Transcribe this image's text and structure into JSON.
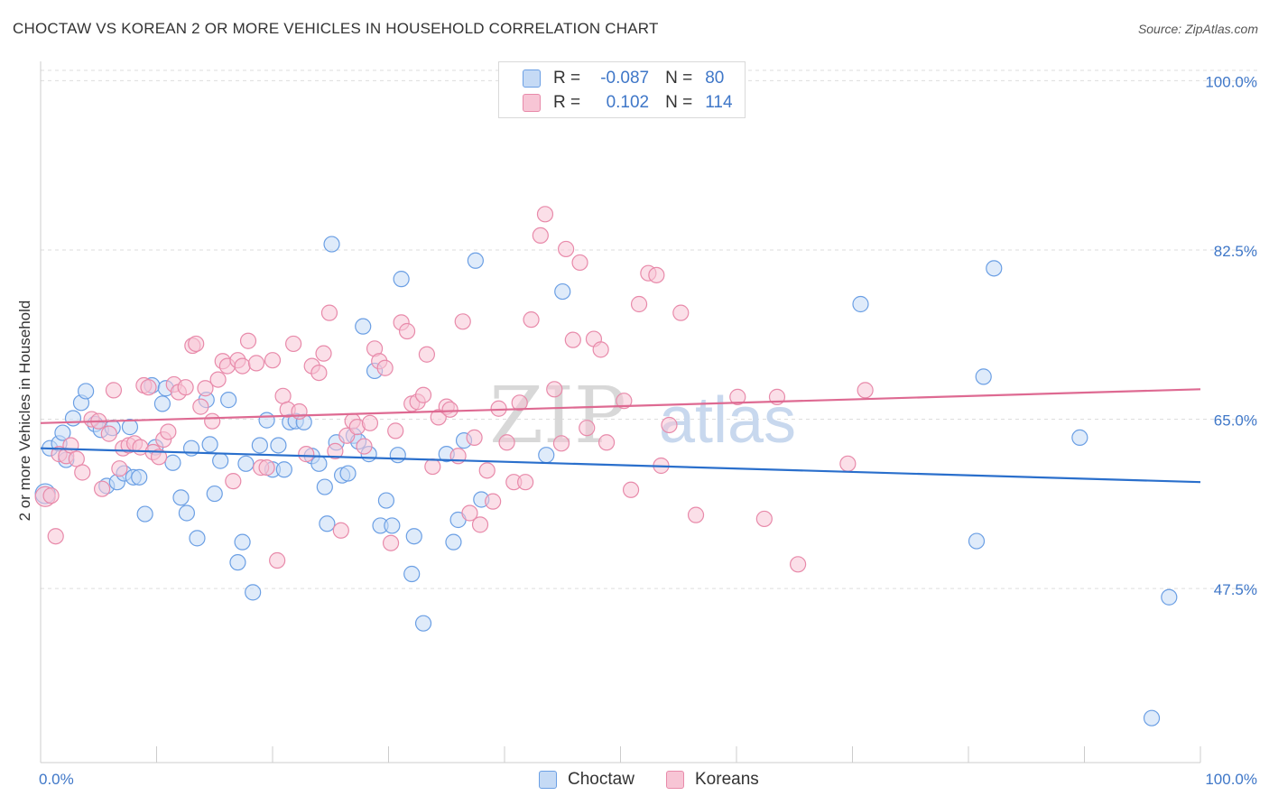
{
  "title": "CHOCTAW VS KOREAN 2 OR MORE VEHICLES IN HOUSEHOLD CORRELATION CHART",
  "source": "Source: ZipAtlas.com",
  "watermark": {
    "zip": "ZIP",
    "atlas": "atlas"
  },
  "legend": {
    "rows": [
      {
        "r_label": "R =",
        "r_value": "-0.087",
        "n_label": "N =",
        "n_value": "80"
      },
      {
        "r_label": "R =",
        "r_value": "0.102",
        "n_label": "N =",
        "n_value": "114"
      }
    ]
  },
  "bottom_legend": [
    "Choctaw",
    "Koreans"
  ],
  "chart_data": {
    "type": "scatter",
    "title": "CHOCTAW VS KOREAN 2 OR MORE VEHICLES IN HOUSEHOLD CORRELATION CHART",
    "xlabel": "",
    "ylabel": "2 or more Vehicles in Household",
    "xlim": [
      0,
      100
    ],
    "ylim": [
      29.5,
      102
    ],
    "x_tick_labels": [
      "0.0%",
      "100.0%"
    ],
    "y_ticks": [
      47.5,
      65.0,
      82.5,
      100.0
    ],
    "y_tick_labels": [
      "47.5%",
      "65.0%",
      "82.5%",
      "100.0%"
    ],
    "grid": true,
    "series": [
      {
        "name": "Choctaw",
        "color": "#6b9fe4",
        "fill": "#c5daf5",
        "trend_color": "#2a6fcc",
        "r": -0.087,
        "n": 80,
        "trend": [
          [
            0,
            62.0
          ],
          [
            100,
            58.5
          ]
        ],
        "points": [
          [
            0.4,
            57.3
          ],
          [
            0.8,
            62.0
          ],
          [
            1.6,
            62.5
          ],
          [
            1.9,
            63.6
          ],
          [
            2.2,
            60.8
          ],
          [
            2.8,
            65.1
          ],
          [
            3.5,
            66.7
          ],
          [
            3.9,
            67.9
          ],
          [
            4.7,
            64.5
          ],
          [
            5.2,
            63.9
          ],
          [
            5.7,
            58.1
          ],
          [
            6.2,
            64.1
          ],
          [
            6.6,
            58.5
          ],
          [
            7.2,
            59.4
          ],
          [
            7.7,
            64.2
          ],
          [
            8.0,
            59.0
          ],
          [
            8.5,
            59.0
          ],
          [
            9.0,
            55.2
          ],
          [
            9.6,
            68.5
          ],
          [
            9.9,
            62.1
          ],
          [
            10.5,
            66.6
          ],
          [
            10.8,
            68.2
          ],
          [
            11.4,
            60.5
          ],
          [
            12.1,
            56.9
          ],
          [
            12.6,
            55.3
          ],
          [
            13.0,
            62.0
          ],
          [
            13.5,
            52.7
          ],
          [
            14.3,
            67.0
          ],
          [
            14.6,
            62.4
          ],
          [
            15.0,
            57.3
          ],
          [
            15.5,
            60.7
          ],
          [
            16.2,
            67.0
          ],
          [
            17.0,
            50.2
          ],
          [
            17.4,
            52.3
          ],
          [
            17.7,
            60.4
          ],
          [
            18.3,
            47.1
          ],
          [
            18.9,
            62.3
          ],
          [
            19.5,
            64.9
          ],
          [
            20.0,
            59.8
          ],
          [
            20.5,
            62.3
          ],
          [
            21.0,
            59.8
          ],
          [
            21.5,
            64.7
          ],
          [
            22.0,
            64.8
          ],
          [
            22.7,
            64.7
          ],
          [
            23.4,
            61.2
          ],
          [
            24.0,
            60.4
          ],
          [
            24.5,
            58.0
          ],
          [
            24.7,
            54.2
          ],
          [
            25.1,
            83.1
          ],
          [
            25.5,
            62.6
          ],
          [
            26.0,
            59.2
          ],
          [
            26.5,
            59.4
          ],
          [
            27.0,
            63.3
          ],
          [
            27.4,
            62.7
          ],
          [
            27.8,
            74.6
          ],
          [
            28.3,
            61.4
          ],
          [
            28.8,
            70.0
          ],
          [
            29.3,
            54.0
          ],
          [
            29.8,
            56.6
          ],
          [
            30.3,
            54.0
          ],
          [
            30.8,
            61.3
          ],
          [
            31.1,
            79.5
          ],
          [
            32.0,
            49.0
          ],
          [
            32.2,
            52.9
          ],
          [
            33.0,
            43.9
          ],
          [
            35.0,
            61.4
          ],
          [
            35.6,
            52.3
          ],
          [
            36.0,
            54.6
          ],
          [
            36.5,
            62.8
          ],
          [
            37.5,
            81.4
          ],
          [
            38.0,
            56.7
          ],
          [
            43.6,
            61.3
          ],
          [
            45.0,
            78.2
          ],
          [
            70.7,
            76.9
          ],
          [
            80.7,
            52.4
          ],
          [
            81.3,
            69.4
          ],
          [
            82.2,
            80.6
          ],
          [
            89.6,
            63.1
          ],
          [
            97.3,
            46.6
          ],
          [
            95.8,
            34.1
          ]
        ]
      },
      {
        "name": "Koreans",
        "color": "#e88aaa",
        "fill": "#f7c5d5",
        "trend_color": "#de6a92",
        "r": 0.102,
        "n": 114,
        "trend": [
          [
            0,
            64.6
          ],
          [
            100,
            68.1
          ]
        ],
        "points": [
          [
            0.4,
            57.0
          ],
          [
            0.9,
            57.1
          ],
          [
            1.3,
            52.9
          ],
          [
            1.6,
            61.4
          ],
          [
            2.2,
            61.2
          ],
          [
            2.6,
            62.3
          ],
          [
            3.1,
            60.9
          ],
          [
            3.6,
            59.5
          ],
          [
            4.4,
            65.0
          ],
          [
            5.0,
            64.8
          ],
          [
            5.3,
            57.8
          ],
          [
            5.9,
            63.5
          ],
          [
            6.3,
            68.0
          ],
          [
            6.8,
            59.9
          ],
          [
            7.1,
            62.0
          ],
          [
            7.6,
            62.3
          ],
          [
            8.1,
            62.5
          ],
          [
            8.6,
            62.1
          ],
          [
            8.9,
            68.5
          ],
          [
            9.3,
            68.3
          ],
          [
            9.7,
            61.6
          ],
          [
            10.2,
            61.1
          ],
          [
            10.6,
            62.9
          ],
          [
            11.0,
            63.7
          ],
          [
            11.5,
            68.6
          ],
          [
            11.9,
            67.8
          ],
          [
            12.5,
            68.3
          ],
          [
            13.1,
            72.6
          ],
          [
            13.4,
            72.8
          ],
          [
            13.8,
            66.3
          ],
          [
            14.2,
            68.2
          ],
          [
            14.8,
            64.8
          ],
          [
            15.3,
            69.1
          ],
          [
            15.7,
            71.0
          ],
          [
            16.1,
            70.5
          ],
          [
            16.6,
            58.6
          ],
          [
            17.0,
            71.1
          ],
          [
            17.4,
            70.5
          ],
          [
            17.9,
            73.1
          ],
          [
            18.6,
            70.8
          ],
          [
            19.0,
            60.0
          ],
          [
            19.5,
            60.0
          ],
          [
            20.0,
            71.1
          ],
          [
            20.4,
            50.4
          ],
          [
            20.9,
            67.4
          ],
          [
            21.3,
            66.0
          ],
          [
            21.8,
            72.8
          ],
          [
            22.3,
            65.8
          ],
          [
            22.9,
            61.4
          ],
          [
            23.4,
            70.5
          ],
          [
            24.0,
            69.8
          ],
          [
            24.4,
            71.8
          ],
          [
            24.9,
            76.0
          ],
          [
            25.4,
            61.7
          ],
          [
            25.9,
            53.5
          ],
          [
            26.4,
            63.3
          ],
          [
            26.9,
            64.8
          ],
          [
            27.3,
            64.2
          ],
          [
            27.9,
            62.2
          ],
          [
            28.4,
            64.6
          ],
          [
            28.8,
            72.3
          ],
          [
            29.2,
            71.0
          ],
          [
            29.7,
            70.3
          ],
          [
            30.2,
            52.2
          ],
          [
            30.6,
            63.8
          ],
          [
            31.1,
            75.0
          ],
          [
            31.6,
            74.1
          ],
          [
            32.0,
            66.6
          ],
          [
            32.5,
            66.8
          ],
          [
            33.0,
            67.5
          ],
          [
            33.3,
            71.7
          ],
          [
            33.8,
            60.1
          ],
          [
            34.3,
            65.2
          ],
          [
            35.0,
            66.3
          ],
          [
            35.3,
            66.0
          ],
          [
            36.0,
            61.2
          ],
          [
            36.4,
            75.1
          ],
          [
            37.0,
            55.3
          ],
          [
            37.4,
            63.1
          ],
          [
            37.9,
            54.1
          ],
          [
            38.5,
            59.7
          ],
          [
            39.0,
            56.5
          ],
          [
            39.5,
            66.1
          ],
          [
            40.2,
            62.6
          ],
          [
            40.8,
            58.5
          ],
          [
            41.3,
            66.7
          ],
          [
            41.8,
            58.5
          ],
          [
            42.3,
            75.3
          ],
          [
            43.1,
            84.0
          ],
          [
            43.5,
            86.2
          ],
          [
            44.3,
            68.1
          ],
          [
            44.9,
            62.5
          ],
          [
            45.3,
            82.6
          ],
          [
            45.9,
            73.2
          ],
          [
            46.5,
            81.2
          ],
          [
            47.1,
            64.1
          ],
          [
            47.7,
            73.3
          ],
          [
            48.3,
            72.2
          ],
          [
            48.8,
            62.6
          ],
          [
            50.3,
            66.9
          ],
          [
            50.9,
            57.7
          ],
          [
            51.6,
            76.9
          ],
          [
            52.4,
            80.1
          ],
          [
            53.1,
            79.9
          ],
          [
            53.5,
            60.2
          ],
          [
            54.2,
            64.4
          ],
          [
            55.2,
            76.0
          ],
          [
            56.5,
            55.1
          ],
          [
            60.1,
            67.3
          ],
          [
            62.4,
            54.7
          ],
          [
            63.5,
            67.3
          ],
          [
            65.3,
            50.0
          ],
          [
            69.6,
            60.4
          ],
          [
            71.1,
            68.0
          ]
        ]
      }
    ]
  }
}
